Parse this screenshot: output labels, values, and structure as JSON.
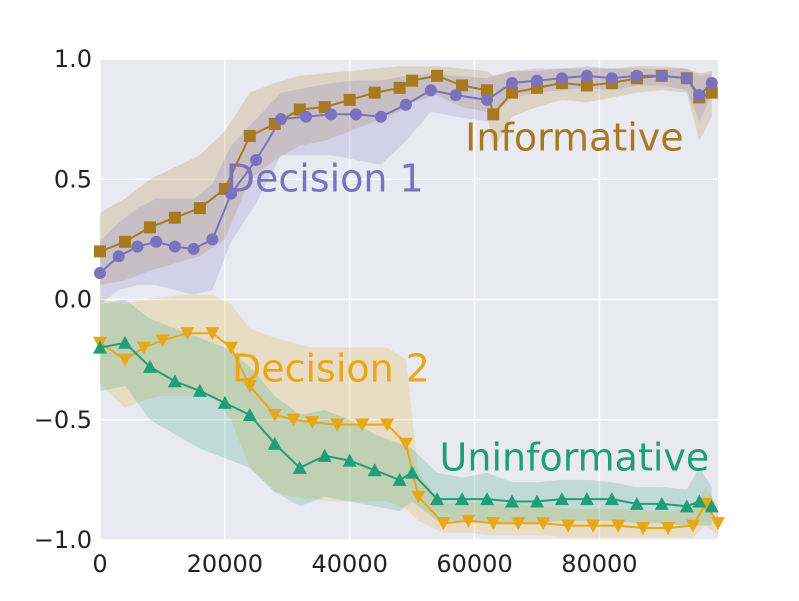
{
  "chart_data": {
    "type": "line",
    "title": "",
    "xlabel": "",
    "ylabel": "",
    "xlim": [
      0,
      99000
    ],
    "ylim": [
      -1.0,
      1.0
    ],
    "xticks": [
      0,
      20000,
      40000,
      60000,
      80000
    ],
    "xtick_labels": [
      "0",
      "20000",
      "40000",
      "60000",
      "80000"
    ],
    "yticks": [
      -1.0,
      -0.5,
      0.0,
      0.5,
      1.0
    ],
    "ytick_labels": [
      "−1.0",
      "−0.5",
      "0.0",
      "0.5",
      "1.0"
    ],
    "grid": true,
    "background": "#e9e9f1",
    "series": [
      {
        "name": "Informative",
        "color": "#a87a1f",
        "marker": "square",
        "label_pos": [
          76000,
          0.62
        ],
        "x": [
          0,
          4000,
          8000,
          12000,
          16000,
          20000,
          24000,
          28000,
          32000,
          36000,
          40000,
          44000,
          48000,
          50000,
          54000,
          58000,
          62000,
          63000,
          66000,
          70000,
          74000,
          78000,
          82000,
          86000,
          90000,
          94000,
          96000,
          98000
        ],
        "y": [
          0.2,
          0.24,
          0.3,
          0.34,
          0.38,
          0.46,
          0.68,
          0.73,
          0.79,
          0.8,
          0.83,
          0.86,
          0.88,
          0.91,
          0.93,
          0.89,
          0.87,
          0.77,
          0.86,
          0.88,
          0.9,
          0.89,
          0.9,
          0.92,
          0.93,
          0.92,
          0.84,
          0.86
        ],
        "upper": [
          0.36,
          0.42,
          0.5,
          0.55,
          0.6,
          0.7,
          0.86,
          0.9,
          0.93,
          0.94,
          0.95,
          0.96,
          0.97,
          0.97,
          0.97,
          0.96,
          0.95,
          0.93,
          0.95,
          0.95,
          0.96,
          0.96,
          0.96,
          0.97,
          0.97,
          0.96,
          0.94,
          0.95
        ],
        "lower": [
          0.06,
          0.08,
          0.12,
          0.15,
          0.18,
          0.25,
          0.5,
          0.58,
          0.64,
          0.66,
          0.7,
          0.74,
          0.78,
          0.82,
          0.85,
          0.8,
          0.78,
          0.62,
          0.76,
          0.8,
          0.83,
          0.82,
          0.84,
          0.86,
          0.87,
          0.86,
          0.66,
          0.76
        ]
      },
      {
        "name": "Decision 1",
        "color": "#7a72be",
        "marker": "circle",
        "label_pos": [
          36000,
          0.45
        ],
        "x": [
          0,
          3000,
          6000,
          9000,
          12000,
          15000,
          18000,
          21000,
          25000,
          29000,
          33000,
          37000,
          41000,
          45000,
          49000,
          53000,
          57000,
          62000,
          66000,
          70000,
          74000,
          78000,
          82000,
          86000,
          90000,
          94000,
          96000,
          98000
        ],
        "y": [
          0.11,
          0.18,
          0.22,
          0.24,
          0.22,
          0.21,
          0.25,
          0.44,
          0.58,
          0.75,
          0.76,
          0.77,
          0.77,
          0.76,
          0.81,
          0.87,
          0.85,
          0.83,
          0.9,
          0.91,
          0.92,
          0.93,
          0.92,
          0.93,
          0.93,
          0.92,
          0.85,
          0.9
        ],
        "upper": [
          0.24,
          0.32,
          0.38,
          0.42,
          0.42,
          0.42,
          0.48,
          0.64,
          0.75,
          0.86,
          0.88,
          0.9,
          0.91,
          0.91,
          0.93,
          0.94,
          0.93,
          0.92,
          0.95,
          0.96,
          0.96,
          0.97,
          0.96,
          0.96,
          0.96,
          0.96,
          0.93,
          0.94
        ],
        "lower": [
          -0.02,
          0.04,
          0.06,
          0.06,
          0.04,
          0.02,
          0.04,
          0.24,
          0.4,
          0.6,
          0.6,
          0.6,
          0.58,
          0.56,
          0.66,
          0.78,
          0.76,
          0.74,
          0.84,
          0.86,
          0.87,
          0.88,
          0.87,
          0.89,
          0.89,
          0.87,
          0.74,
          0.85
        ]
      },
      {
        "name": "Decision 2",
        "color": "#e6a817",
        "marker": "triangle-down",
        "label_pos": [
          37000,
          -0.34
        ],
        "x": [
          0,
          4000,
          7000,
          10000,
          14000,
          18000,
          21000,
          24000,
          28000,
          31000,
          34000,
          38000,
          42000,
          46000,
          49000,
          51000,
          55000,
          59000,
          63000,
          67000,
          71000,
          75000,
          79000,
          83000,
          87000,
          91000,
          95000,
          97000,
          99000
        ],
        "y": [
          -0.18,
          -0.25,
          -0.2,
          -0.17,
          -0.14,
          -0.14,
          -0.2,
          -0.36,
          -0.48,
          -0.5,
          -0.51,
          -0.52,
          -0.52,
          -0.52,
          -0.6,
          -0.82,
          -0.93,
          -0.92,
          -0.93,
          -0.93,
          -0.93,
          -0.94,
          -0.94,
          -0.94,
          -0.95,
          -0.95,
          -0.94,
          -0.85,
          -0.93
        ],
        "upper": [
          0.0,
          -0.02,
          0.0,
          0.01,
          0.02,
          0.02,
          -0.02,
          -0.12,
          -0.16,
          -0.18,
          -0.2,
          -0.2,
          -0.2,
          -0.2,
          -0.25,
          -0.72,
          -0.85,
          -0.84,
          -0.85,
          -0.85,
          -0.86,
          -0.87,
          -0.87,
          -0.87,
          -0.88,
          -0.88,
          -0.87,
          -0.78,
          -0.86
        ],
        "lower": [
          -0.35,
          -0.45,
          -0.42,
          -0.4,
          -0.4,
          -0.4,
          -0.5,
          -0.7,
          -0.8,
          -0.82,
          -0.83,
          -0.84,
          -0.84,
          -0.84,
          -0.87,
          -0.92,
          -0.97,
          -0.97,
          -0.98,
          -0.98,
          -0.98,
          -0.99,
          -0.99,
          -0.99,
          -0.99,
          -0.99,
          -0.99,
          -0.94,
          -0.98
        ]
      },
      {
        "name": "Uninformative",
        "color": "#1f9e78",
        "marker": "triangle-up",
        "label_pos": [
          76000,
          -0.71
        ],
        "x": [
          0,
          4000,
          8000,
          12000,
          16000,
          20000,
          24000,
          28000,
          32000,
          36000,
          40000,
          44000,
          48000,
          50000,
          54000,
          58000,
          62000,
          66000,
          70000,
          74000,
          78000,
          82000,
          86000,
          90000,
          94000,
          96000,
          98000
        ],
        "y": [
          -0.2,
          -0.18,
          -0.28,
          -0.34,
          -0.38,
          -0.43,
          -0.48,
          -0.6,
          -0.7,
          -0.65,
          -0.67,
          -0.71,
          -0.75,
          -0.72,
          -0.83,
          -0.83,
          -0.83,
          -0.84,
          -0.84,
          -0.83,
          -0.83,
          -0.83,
          -0.85,
          -0.85,
          -0.86,
          -0.84,
          -0.86
        ],
        "upper": [
          -0.02,
          0.0,
          -0.08,
          -0.12,
          -0.16,
          -0.2,
          -0.28,
          -0.4,
          -0.48,
          -0.46,
          -0.5,
          -0.56,
          -0.6,
          -0.62,
          -0.72,
          -0.74,
          -0.72,
          -0.76,
          -0.76,
          -0.75,
          -0.75,
          -0.76,
          -0.78,
          -0.78,
          -0.79,
          -0.7,
          -0.78
        ],
        "lower": [
          -0.38,
          -0.36,
          -0.5,
          -0.56,
          -0.62,
          -0.66,
          -0.7,
          -0.8,
          -0.86,
          -0.82,
          -0.84,
          -0.86,
          -0.88,
          -0.84,
          -0.92,
          -0.92,
          -0.93,
          -0.93,
          -0.93,
          -0.92,
          -0.92,
          -0.92,
          -0.93,
          -0.93,
          -0.94,
          -0.94,
          -0.94
        ]
      }
    ]
  }
}
